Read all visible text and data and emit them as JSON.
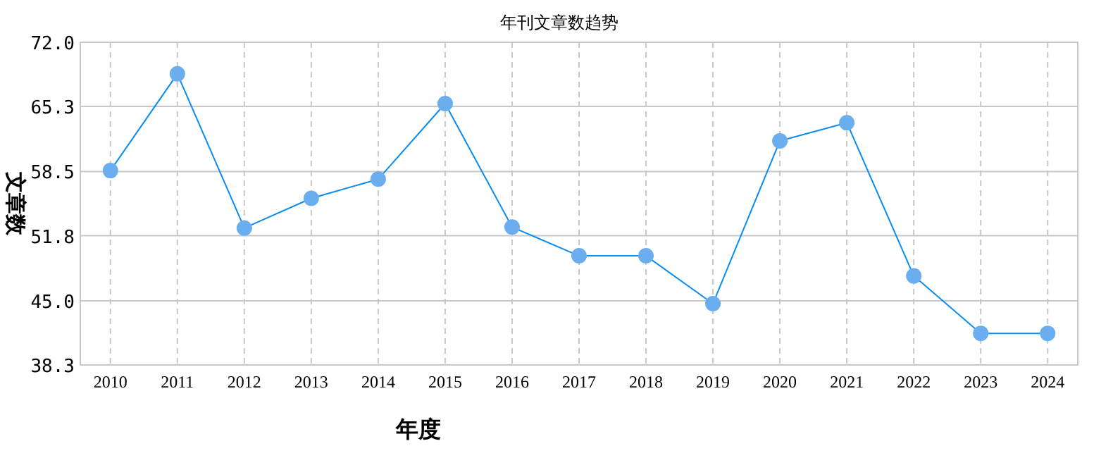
{
  "chart_data": {
    "type": "line",
    "title": "年刊文章数趋势",
    "xlabel": "年度",
    "ylabel": "文章数",
    "categories": [
      "2010",
      "2011",
      "2012",
      "2013",
      "2014",
      "2015",
      "2016",
      "2017",
      "2018",
      "2019",
      "2020",
      "2021",
      "2022",
      "2023",
      "2024"
    ],
    "series": [
      {
        "color": "#0a8cf0",
        "values": [
          58.6,
          68.7,
          52.6,
          55.7,
          57.7,
          65.6,
          52.7,
          49.7,
          49.7,
          44.7,
          61.7,
          63.6,
          47.6,
          41.6,
          41.6
        ]
      }
    ],
    "ylim": [
      38.3,
      72.0
    ],
    "yticks": [
      {
        "value": 38.3,
        "label": "38.3"
      },
      {
        "value": 45.0,
        "label": "45.0"
      },
      {
        "value": 51.8,
        "label": "51.8"
      },
      {
        "value": 58.5,
        "label": "58.5"
      },
      {
        "value": 65.3,
        "label": "65.3"
      },
      {
        "value": 72.0,
        "label": "72.0"
      }
    ],
    "grid": true,
    "marker": "circle",
    "line_style": "solid"
  }
}
